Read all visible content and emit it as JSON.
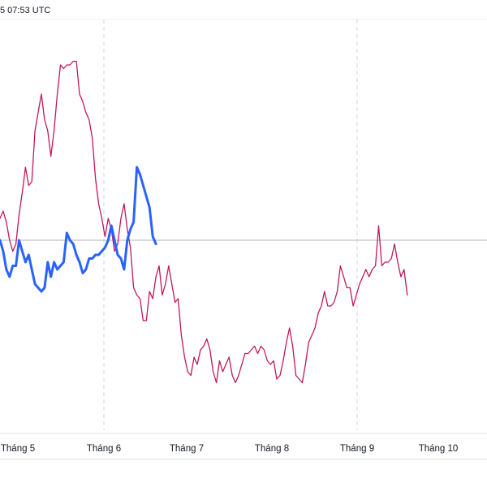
{
  "header": {
    "timestamp": "5 07:53 UTC"
  },
  "chart_data": {
    "type": "line",
    "x_ticks": [
      "Tháng 5",
      "Tháng 6",
      "Tháng 7",
      "Tháng 8",
      "Tháng 9",
      "Tháng 10"
    ],
    "vertical_gridlines_at": [
      "Tháng 6",
      "Tháng 9"
    ],
    "baseline": 0,
    "ylim": [
      -43,
      56
    ],
    "series": [
      {
        "color": "#c2185b",
        "values": [
          6,
          8,
          5,
          0,
          -3,
          -1,
          7,
          13,
          20,
          15,
          16,
          30,
          35,
          40,
          33,
          30,
          23,
          30,
          40,
          48,
          47,
          48,
          48,
          49,
          49,
          40,
          38,
          35,
          33,
          28,
          17,
          10,
          6,
          1,
          6,
          3,
          -3,
          -1,
          6,
          10,
          3,
          -2,
          -13,
          -15,
          -16,
          -22,
          -22,
          -14,
          -16,
          -10,
          -7,
          -15,
          -12,
          -7,
          -12,
          -17,
          -16,
          -26,
          -32,
          -36,
          -37,
          -32,
          -34,
          -30,
          -29,
          -27,
          -30,
          -36,
          -39,
          -33,
          -36,
          -34,
          -32,
          -37,
          -39,
          -37,
          -34,
          -31,
          -31,
          -30,
          -29,
          -31,
          -29,
          -30,
          -33,
          -34,
          -33,
          -38,
          -37,
          -33,
          -28,
          -24,
          -29,
          -37,
          -38,
          -39,
          -34,
          -28,
          -26,
          -24,
          -20,
          -18,
          -14,
          -18,
          -18,
          -17,
          -14,
          -7,
          -10,
          -13,
          -13,
          -18,
          -15,
          -12,
          -10,
          -8,
          -10,
          -8,
          -7,
          4,
          -7,
          -6,
          -6,
          -5,
          -1,
          -6,
          -10,
          -8,
          -15
        ]
      },
      {
        "color": "#2962ff",
        "values": [
          0,
          -3,
          -8,
          -10,
          -7,
          -7,
          0,
          -3,
          -6,
          -4,
          -8,
          -12,
          -13,
          -14,
          -13,
          -6,
          -10,
          -6,
          -8,
          -7,
          -6,
          2,
          0,
          -1,
          -4,
          -6,
          -9,
          -8,
          -5,
          -5,
          -4,
          -4,
          -3,
          -2,
          0,
          4,
          0,
          -4,
          -5,
          -8,
          0,
          3,
          5,
          20,
          18,
          15,
          12,
          9,
          1,
          -1
        ]
      }
    ]
  }
}
